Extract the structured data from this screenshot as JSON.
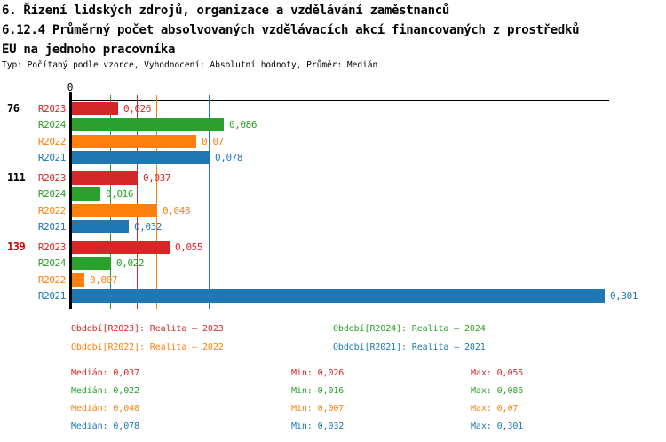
{
  "header": {
    "title_line1": "6. Řízení lidských zdrojů, organizace a vzdělávání zaměstnanců",
    "title_line2": "6.12.4 Průměrný počet absolvovaných vzdělávacích akcí financovaných z prostředků",
    "title_line3": "EU na jednoho pracovníka",
    "meta": "Typ: Počítaný podle vzorce, Vyhodnocení: Absolutní hodnoty, Průměr: Medián"
  },
  "colors": {
    "R2023": "#d62728",
    "R2024": "#2ca02c",
    "R2022": "#ff7f0e",
    "R2021": "#1f77b4",
    "group_label_default": "#000000",
    "group_label_highlight": "#cc0000",
    "axis": "#000000"
  },
  "chart_data": {
    "type": "bar",
    "orientation": "horizontal",
    "value_axis": {
      "zero_label": "0",
      "min": 0,
      "max": 0.304
    },
    "categories": [
      "76",
      "111",
      "139"
    ],
    "series_order": [
      "R2023",
      "R2024",
      "R2022",
      "R2021"
    ],
    "groups": [
      {
        "label": "76",
        "highlight": false,
        "bars": [
          {
            "series": "R2023",
            "value": 0.026,
            "label": "0,026"
          },
          {
            "series": "R2024",
            "value": 0.086,
            "label": "0,086"
          },
          {
            "series": "R2022",
            "value": 0.07,
            "label": "0,07"
          },
          {
            "series": "R2021",
            "value": 0.078,
            "label": "0,078"
          }
        ]
      },
      {
        "label": "111",
        "highlight": false,
        "bars": [
          {
            "series": "R2023",
            "value": 0.037,
            "label": "0,037"
          },
          {
            "series": "R2024",
            "value": 0.016,
            "label": "0,016"
          },
          {
            "series": "R2022",
            "value": 0.048,
            "label": "0,048"
          },
          {
            "series": "R2021",
            "value": 0.032,
            "label": "0,032"
          }
        ]
      },
      {
        "label": "139",
        "highlight": true,
        "bars": [
          {
            "series": "R2023",
            "value": 0.055,
            "label": "0,055"
          },
          {
            "series": "R2024",
            "value": 0.022,
            "label": "0,022"
          },
          {
            "series": "R2022",
            "value": 0.007,
            "label": "0,007"
          },
          {
            "series": "R2021",
            "value": 0.301,
            "label": "0,301"
          }
        ]
      }
    ],
    "median_lines": [
      {
        "series": "R2024",
        "value": 0.022
      },
      {
        "series": "R2023",
        "value": 0.037
      },
      {
        "series": "R2022",
        "value": 0.048
      },
      {
        "series": "R2021",
        "value": 0.078
      }
    ]
  },
  "legend": {
    "items": [
      {
        "series": "R2023",
        "label": "Období[R2023]: Realita – 2023"
      },
      {
        "series": "R2024",
        "label": "Období[R2024]: Realita – 2024"
      },
      {
        "series": "R2022",
        "label": "Období[R2022]: Realita – 2022"
      },
      {
        "series": "R2021",
        "label": "Období[R2021]: Realita – 2021"
      }
    ]
  },
  "stats": {
    "rows": [
      {
        "series": "R2023",
        "median": "Medián: 0,037",
        "min": "Min: 0,026",
        "max": "Max: 0,055"
      },
      {
        "series": "R2024",
        "median": "Medián: 0,022",
        "min": "Min: 0,016",
        "max": "Max: 0,086"
      },
      {
        "series": "R2022",
        "median": "Medián: 0,048",
        "min": "Min: 0,007",
        "max": "Max: 0,07"
      },
      {
        "series": "R2021",
        "median": "Medián: 0,078",
        "min": "Min: 0,032",
        "max": "Max: 0,301"
      }
    ]
  }
}
